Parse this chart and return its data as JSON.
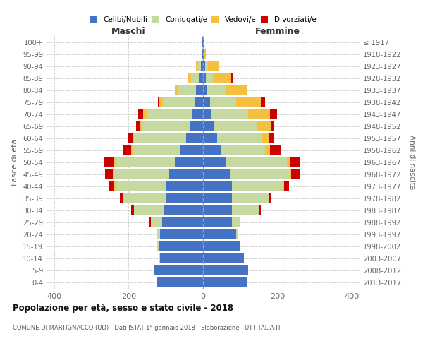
{
  "age_groups": [
    "100+",
    "95-99",
    "90-94",
    "85-89",
    "80-84",
    "75-79",
    "70-74",
    "65-69",
    "60-64",
    "55-59",
    "50-54",
    "45-49",
    "40-44",
    "35-39",
    "30-34",
    "25-29",
    "20-24",
    "15-19",
    "10-14",
    "5-9",
    "0-4"
  ],
  "birth_years": [
    "≤ 1917",
    "1918-1922",
    "1923-1927",
    "1928-1932",
    "1933-1937",
    "1938-1942",
    "1943-1947",
    "1948-1952",
    "1953-1957",
    "1958-1962",
    "1963-1967",
    "1968-1972",
    "1973-1977",
    "1978-1982",
    "1983-1987",
    "1988-1992",
    "1993-1997",
    "1998-2002",
    "2003-2007",
    "2008-2012",
    "2013-2017"
  ],
  "colors": {
    "celibi": "#4472C4",
    "coniugati": "#c5d9a0",
    "vedovi": "#f5c040",
    "divorziati": "#cc0000"
  },
  "maschi": {
    "celibi": [
      2,
      3,
      6,
      12,
      18,
      22,
      30,
      35,
      45,
      60,
      75,
      90,
      100,
      100,
      105,
      110,
      115,
      120,
      115,
      130,
      125
    ],
    "coniugati": [
      0,
      0,
      8,
      20,
      50,
      85,
      120,
      130,
      140,
      130,
      160,
      150,
      135,
      115,
      80,
      30,
      10,
      5,
      5,
      0,
      0
    ],
    "vedovi": [
      0,
      0,
      5,
      8,
      8,
      10,
      10,
      5,
      5,
      3,
      3,
      3,
      3,
      0,
      0,
      0,
      0,
      0,
      0,
      0,
      0
    ],
    "divorziati": [
      0,
      0,
      0,
      0,
      0,
      5,
      15,
      10,
      12,
      22,
      28,
      20,
      15,
      8,
      8,
      3,
      0,
      0,
      0,
      0,
      0
    ]
  },
  "femmine": {
    "celibi": [
      1,
      2,
      5,
      8,
      12,
      18,
      22,
      28,
      38,
      48,
      60,
      72,
      78,
      78,
      78,
      78,
      88,
      98,
      110,
      122,
      118
    ],
    "coniugati": [
      0,
      0,
      8,
      18,
      50,
      70,
      100,
      115,
      120,
      118,
      165,
      160,
      135,
      98,
      72,
      22,
      5,
      0,
      0,
      0,
      0
    ],
    "vedovi": [
      0,
      5,
      28,
      48,
      58,
      68,
      58,
      38,
      18,
      14,
      8,
      4,
      4,
      0,
      0,
      0,
      0,
      0,
      0,
      0,
      0
    ],
    "divorziati": [
      0,
      0,
      0,
      5,
      0,
      10,
      18,
      10,
      14,
      28,
      28,
      24,
      14,
      5,
      5,
      0,
      0,
      0,
      0,
      0,
      0
    ]
  },
  "xlim": 420,
  "title": "Popolazione per età, sesso e stato civile - 2018",
  "subtitle": "COMUNE DI MARTIGNACCO (UD) - Dati ISTAT 1° gennaio 2018 - Elaborazione TUTTITALIA.IT",
  "ylabel": "Fasce di età",
  "ylabel_right": "Anni di nascita",
  "xlabel_maschi": "Maschi",
  "xlabel_femmine": "Femmine"
}
